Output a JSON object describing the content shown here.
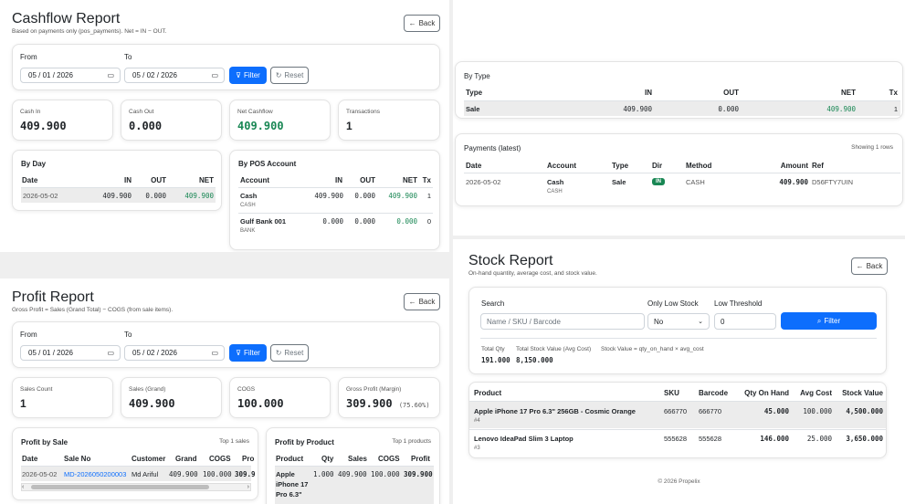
{
  "cashflow": {
    "title": "Cashflow Report",
    "subtitle": "Based on payments only (pos_payments). Net = IN − OUT.",
    "back_label": "Back",
    "from_label": "From",
    "to_label": "To",
    "from_value": "05 / 01 / 2026",
    "to_value": "05 / 02 / 2026",
    "filter_label": "Filter",
    "reset_label": "Reset",
    "stats": {
      "cash_in_label": "Cash In",
      "cash_in": "409.900",
      "cash_out_label": "Cash Out",
      "cash_out": "0.000",
      "net_label": "Net Cashflow",
      "net": "409.900",
      "tx_label": "Transactions",
      "tx": "1"
    },
    "by_day": {
      "title": "By Day",
      "headers": [
        "Date",
        "IN",
        "OUT",
        "NET"
      ],
      "rows": [
        {
          "date": "2026-05-02",
          "in": "409.900",
          "out": "0.000",
          "net": "409.900"
        }
      ]
    },
    "by_account": {
      "title": "By POS Account",
      "headers": [
        "Account",
        "IN",
        "OUT",
        "NET",
        "Tx"
      ],
      "rows": [
        {
          "account": "Cash",
          "type": "CASH",
          "in": "409.900",
          "out": "0.000",
          "net": "409.900",
          "tx": "1"
        },
        {
          "account": "Gulf Bank 001",
          "type": "BANK",
          "in": "0.000",
          "out": "0.000",
          "net": "0.000",
          "tx": "0"
        }
      ]
    },
    "by_type": {
      "title": "By Type",
      "headers": [
        "Type",
        "IN",
        "OUT",
        "NET",
        "Tx"
      ],
      "rows": [
        {
          "type": "Sale",
          "in": "409.900",
          "out": "0.000",
          "net": "409.900",
          "tx": "1"
        }
      ]
    },
    "payments": {
      "title": "Payments (latest)",
      "showing": "Showing 1 rows",
      "headers": [
        "Date",
        "Account",
        "Type",
        "Dir",
        "Method",
        "Amount",
        "Ref"
      ],
      "rows": [
        {
          "date": "2026-05-02",
          "account": "Cash",
          "account_sub": "CASH",
          "type": "Sale",
          "dir": "IN",
          "method": "CASH",
          "amount": "409.900",
          "ref": "D56FTY7UIN"
        }
      ]
    }
  },
  "profit": {
    "title": "Profit Report",
    "subtitle": "Gross Profit = Sales (Grand Total) − COGS (from sale items).",
    "back_label": "Back",
    "from_label": "From",
    "to_label": "To",
    "from_value": "05 / 01 / 2026",
    "to_value": "05 / 02 / 2026",
    "filter_label": "Filter",
    "reset_label": "Reset",
    "stats": {
      "count_label": "Sales Count",
      "count": "1",
      "grand_label": "Sales (Grand)",
      "grand": "409.900",
      "cogs_label": "COGS",
      "cogs": "100.000",
      "gp_label": "Gross Profit (Margin)",
      "gp": "309.900",
      "margin": "(75.60%)"
    },
    "by_sale": {
      "title": "Profit by Sale",
      "top": "Top 1 sales",
      "headers": [
        "Date",
        "Sale No",
        "Customer",
        "Grand",
        "COGS",
        "Pro"
      ],
      "rows": [
        {
          "date": "2026-05-02",
          "sale_no": "MD-2026050200003",
          "customer": "Md Ariful",
          "grand": "409.900",
          "cogs": "100.000",
          "profit": "309.9"
        }
      ]
    },
    "by_product": {
      "title": "Profit by Product",
      "top": "Top 1 products",
      "headers": [
        "Product",
        "Qty",
        "Sales",
        "COGS",
        "Profit"
      ],
      "rows": [
        {
          "product_1": "Apple",
          "product_2": "iPhone 17",
          "product_3": "Pro 6.3\"",
          "qty": "1.000",
          "sales": "409.900",
          "cogs": "100.000",
          "profit": "309.900"
        }
      ]
    }
  },
  "stock": {
    "title": "Stock Report",
    "subtitle": "On-hand quantity, average cost, and stock value.",
    "back_label": "Back",
    "search_label": "Search",
    "search_placeholder": "Name / SKU / Barcode",
    "low_label": "Only Low Stock",
    "low_value": "No",
    "threshold_label": "Low Threshold",
    "threshold_value": "0",
    "filter_label": "Filter",
    "total_qty_label": "Total Qty",
    "total_qty": "191.000",
    "total_value_label": "Total Stock Value (Avg Cost)",
    "total_value": "8,150.000",
    "formula": "Stock Value = qty_on_hand × avg_cost",
    "headers": [
      "Product",
      "SKU",
      "Barcode",
      "Qty On Hand",
      "Avg Cost",
      "Stock Value"
    ],
    "rows": [
      {
        "name": "Apple iPhone 17 Pro 6.3\" 256GB - Cosmic Orange",
        "id": "#4",
        "sku": "666770",
        "barcode": "666770",
        "qty": "45.000",
        "avg": "100.000",
        "value": "4,500.000"
      },
      {
        "name": "Lenovo IdeaPad Slim 3 Laptop",
        "id": "#3",
        "sku": "555628",
        "barcode": "555628",
        "qty": "146.000",
        "avg": "25.000",
        "value": "3,650.000"
      }
    ],
    "footer": "© 2026 Propelix"
  },
  "colors": {
    "accent": "#0d6efd",
    "positive": "#198754",
    "link": "#0d6efd"
  }
}
